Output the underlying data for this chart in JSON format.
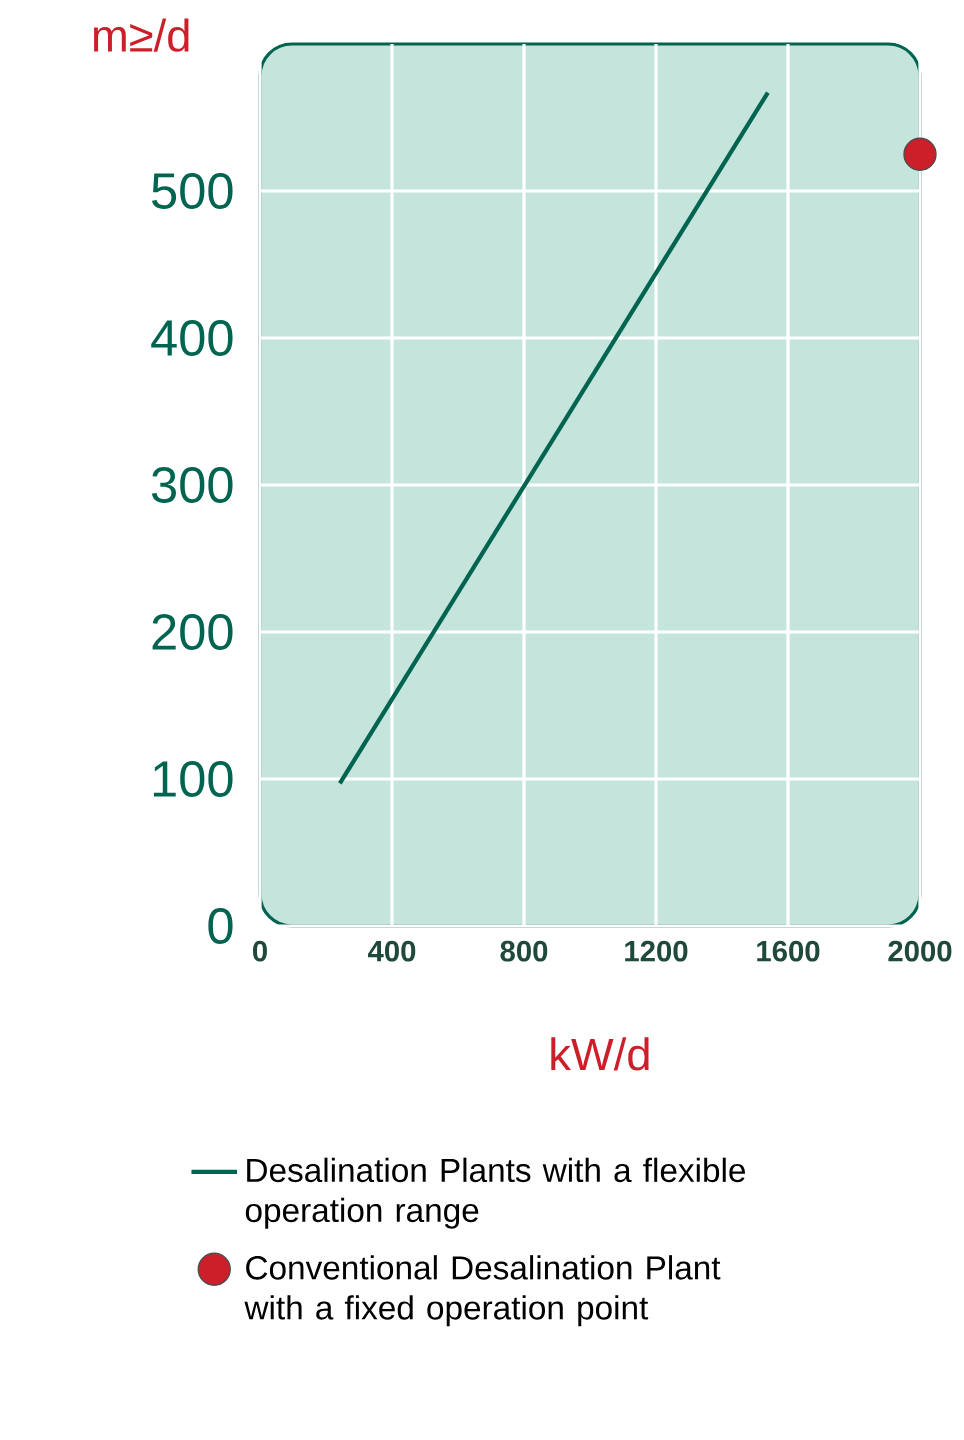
{
  "chart_data": {
    "type": "line",
    "xlabel": "kW/d",
    "ylabel": "m≥/d",
    "xlim": [
      0,
      2000
    ],
    "ylim": [
      0,
      600
    ],
    "xticks": [
      0,
      400,
      800,
      1200,
      1600,
      2000
    ],
    "yticks": [
      0,
      100,
      200,
      300,
      400,
      500
    ],
    "grid": true,
    "legend": "bottom",
    "series": [
      {
        "name": "Desalination Plants with a flexible operation range",
        "color": "#006450",
        "marker": "none",
        "x": [
          242,
          1539
        ],
        "values": [
          97,
          567
        ]
      },
      {
        "name": "Conventional Desalination Plant with a fixed operation point",
        "type": "scatter",
        "color": "#cc1f2a",
        "marker": "circle",
        "x": [
          2000
        ],
        "values": [
          525
        ]
      }
    ]
  }
}
